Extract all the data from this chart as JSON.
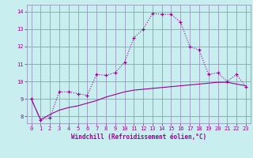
{
  "xlabel": "Windchill (Refroidissement éolien,°C)",
  "bg_color": "#c8eef0",
  "grid_color": "#9999bb",
  "line_color": "#990099",
  "spine_color": "#9999bb",
  "x_ticks": [
    0,
    1,
    2,
    3,
    4,
    5,
    6,
    7,
    8,
    9,
    10,
    11,
    12,
    13,
    14,
    15,
    16,
    17,
    18,
    19,
    20,
    21,
    22,
    23
  ],
  "y_ticks": [
    8,
    9,
    10,
    11,
    12,
    13,
    14
  ],
  "xlim": [
    -0.5,
    23.5
  ],
  "ylim": [
    7.6,
    14.4
  ],
  "line1_x": [
    0,
    1,
    2,
    3,
    4,
    5,
    6,
    7,
    8,
    9,
    10,
    11,
    12,
    13,
    14,
    15,
    16,
    17,
    18,
    19,
    20,
    21,
    22,
    23
  ],
  "line1_y": [
    9.0,
    7.8,
    7.9,
    9.4,
    9.4,
    9.3,
    9.2,
    10.4,
    10.35,
    10.5,
    11.1,
    12.5,
    13.0,
    13.9,
    13.85,
    13.85,
    13.4,
    12.0,
    11.8,
    10.4,
    10.5,
    10.0,
    10.4,
    9.7
  ],
  "line2_x": [
    0,
    1,
    2,
    3,
    4,
    5,
    6,
    7,
    8,
    9,
    10,
    11,
    12,
    13,
    14,
    15,
    16,
    17,
    18,
    19,
    20,
    21,
    22,
    23
  ],
  "line2_y": [
    9.0,
    7.8,
    8.1,
    8.35,
    8.5,
    8.6,
    8.75,
    8.9,
    9.1,
    9.25,
    9.4,
    9.5,
    9.55,
    9.6,
    9.65,
    9.7,
    9.75,
    9.8,
    9.85,
    9.9,
    9.95,
    9.95,
    9.85,
    9.75
  ]
}
